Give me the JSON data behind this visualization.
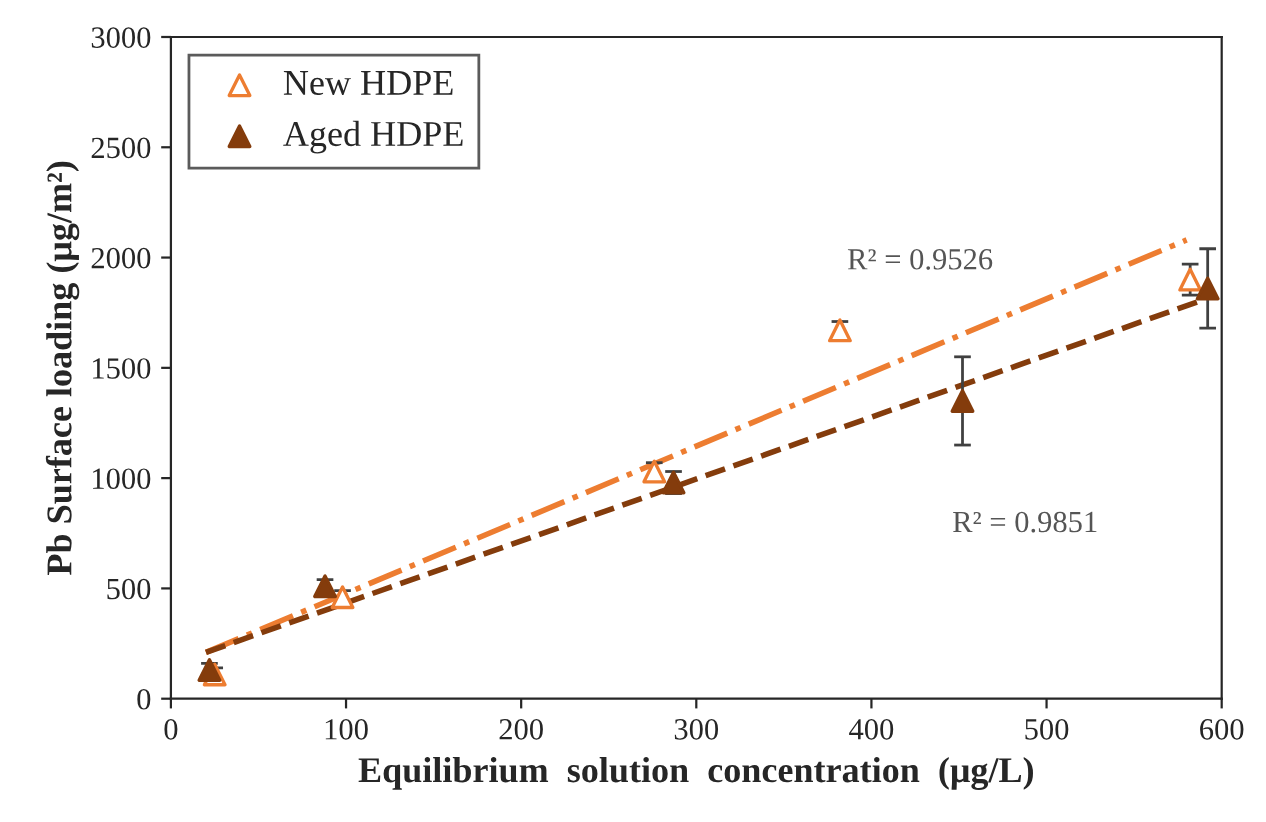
{
  "chart_data": {
    "type": "scatter",
    "xlabel": "Equilibrium  solution  concentration  (μg/L)",
    "ylabel": "Pb Surface loading (μg/m²)",
    "xlim": [
      0,
      600
    ],
    "xticks": [
      0,
      100,
      200,
      300,
      400,
      500,
      600
    ],
    "ylim": [
      0,
      3000
    ],
    "yticks": [
      0,
      500,
      1000,
      1500,
      2000,
      2500,
      3000
    ],
    "grid": false,
    "legend": "top left",
    "series": [
      {
        "name": "New HDPE",
        "color": "#ed7d31",
        "x": [
          25,
          98,
          276,
          382,
          582
        ],
        "values": [
          110,
          460,
          1030,
          1670,
          1900
        ],
        "marker": "triangle",
        "errors": [
          30,
          30,
          40,
          40,
          70
        ]
      },
      {
        "name": "Aged HDPE",
        "color": "#843c0c",
        "x": [
          22,
          88,
          287,
          452,
          592
        ],
        "values": [
          130,
          510,
          980,
          1350,
          1860
        ],
        "marker": "triangle",
        "errors": [
          30,
          30,
          50,
          200,
          180
        ]
      },
      {
        "type": "line",
        "color": "#ed7d31",
        "line_style": "dashdot",
        "marker": "none",
        "x": [
          20,
          580
        ],
        "values": [
          210,
          2080
        ]
      },
      {
        "type": "line",
        "color": "#843c0c",
        "line_style": "dashed",
        "marker": "none",
        "x": [
          20,
          590
        ],
        "values": [
          210,
          1810
        ]
      }
    ],
    "annotations": [
      "R² = 0.9526",
      "R² = 0.9851"
    ]
  }
}
